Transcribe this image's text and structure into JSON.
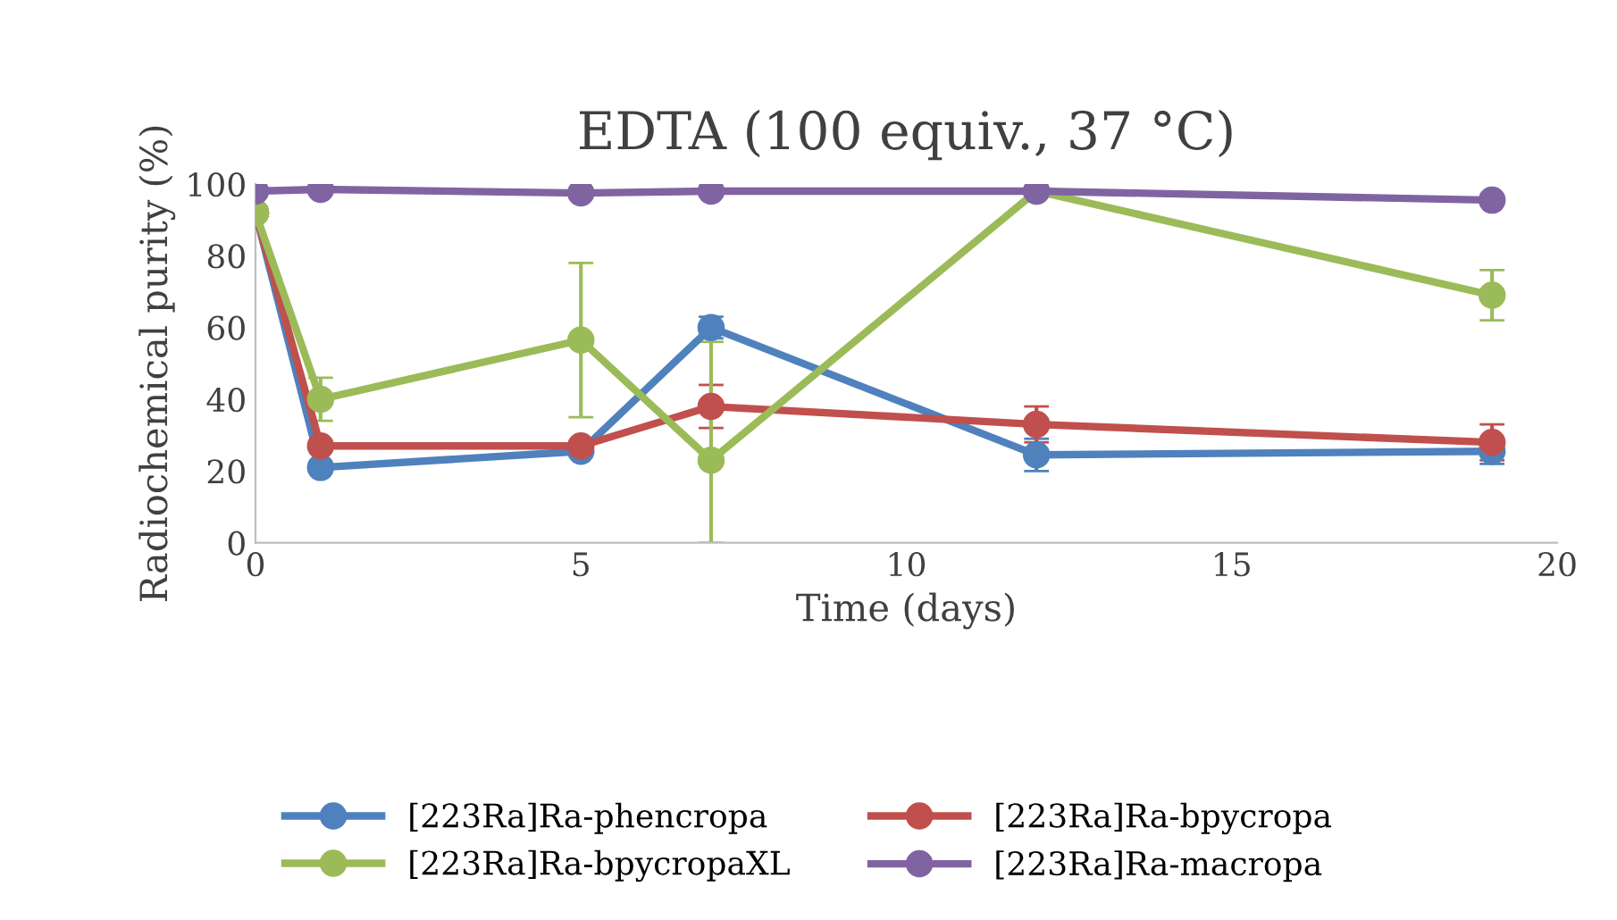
{
  "chart_data": {
    "type": "line",
    "title": "EDTA (100 equiv., 37 °C)",
    "xlabel": "Time (days)",
    "ylabel": "Radiochemical purity (%)",
    "x": [
      0,
      1,
      5,
      7,
      12,
      19
    ],
    "xlim": [
      0,
      20
    ],
    "xticks": [
      0,
      5,
      10,
      15,
      20
    ],
    "ylim": [
      0,
      100
    ],
    "yticks": [
      0,
      20,
      40,
      60,
      80,
      100
    ],
    "grid": false,
    "legend": "bottom",
    "marker": "circle",
    "line_style": "solid",
    "series": [
      {
        "name": "[223Ra]Ra-phencropa",
        "color": "#4f81bd",
        "values": [
          92,
          21,
          25.5,
          60,
          24.5,
          25.5
        ],
        "errors": [
          null,
          null,
          null,
          [
            57,
            63
          ],
          [
            20,
            29
          ],
          [
            22,
            25.5
          ]
        ]
      },
      {
        "name": "[223Ra]Ra-bpycropa",
        "color": "#c0504d",
        "values": [
          92,
          27,
          27,
          38,
          33,
          28
        ],
        "errors": [
          null,
          null,
          null,
          [
            32,
            44
          ],
          [
            28,
            38
          ],
          [
            23,
            33
          ]
        ]
      },
      {
        "name": "[223Ra]Ra-bpycropaXL",
        "color": "#9bbb59",
        "values": [
          92,
          40,
          56.5,
          23,
          98,
          69
        ],
        "errors": [
          null,
          [
            34,
            46
          ],
          [
            35,
            78
          ],
          [
            0,
            56
          ],
          null,
          [
            62,
            76
          ]
        ]
      },
      {
        "name": "[223Ra]Ra-macropa",
        "color": "#8064a2",
        "values": [
          98,
          98.5,
          97.5,
          98,
          98,
          95.5
        ]
      }
    ]
  }
}
